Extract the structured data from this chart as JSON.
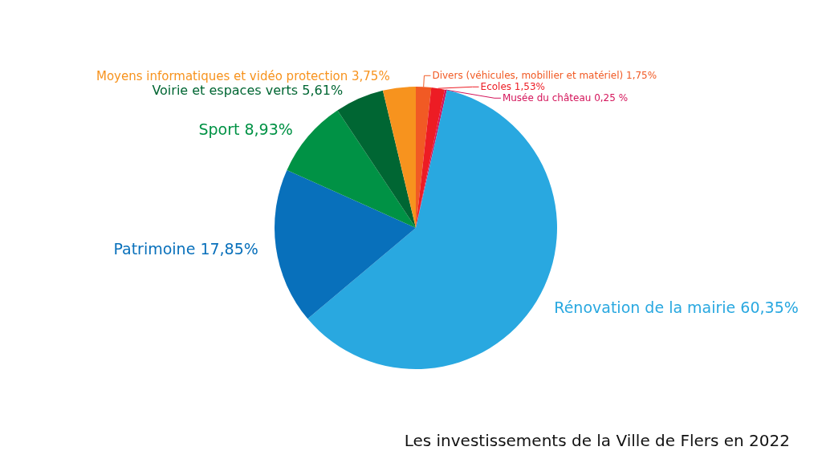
{
  "chart_data": {
    "type": "pie",
    "title": "Les investissements de la Ville de Flers en 2022",
    "categories": [
      "Divers (véhicules, mobillier et matériel)",
      "Ecoles",
      "Musée du château",
      "Rénovation de la mairie",
      "Patrimoine",
      "Sport",
      "Voirie et espaces verts",
      "Moyens informatiques et vidéo protection"
    ],
    "values": [
      1.75,
      1.53,
      0.25,
      60.35,
      17.85,
      8.93,
      5.61,
      3.75
    ],
    "value_labels": [
      "1,75%",
      "1,53%",
      "0,25 %",
      "60,35%",
      "17,85%",
      "8,93%",
      "5,61%",
      "3,75%"
    ],
    "colors": [
      "#f15a24",
      "#ed1c24",
      "#d4145a",
      "#29a8e0",
      "#0870bb",
      "#009245",
      "#006633",
      "#f7931e"
    ],
    "legend": false
  }
}
